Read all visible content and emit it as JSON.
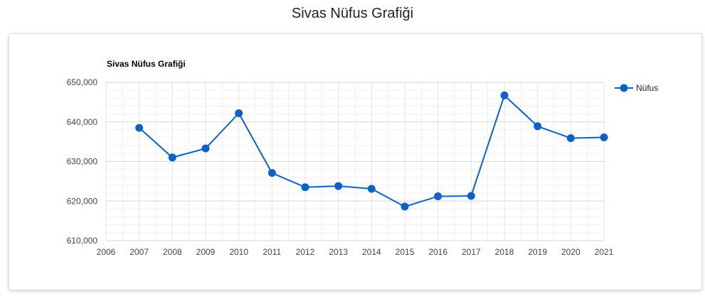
{
  "page": {
    "title": "Sivas Nüfus Grafiği"
  },
  "chart_data": {
    "type": "line",
    "title": "Sivas Nüfus Grafiği",
    "xlabel": "",
    "ylabel": "",
    "x_ticks": [
      "2006",
      "2007",
      "2008",
      "2009",
      "2010",
      "2011",
      "2012",
      "2013",
      "2014",
      "2015",
      "2016",
      "2017",
      "2018",
      "2019",
      "2020",
      "2021"
    ],
    "y_ticks": [
      "610,000",
      "620,000",
      "630,000",
      "640,000",
      "650,000"
    ],
    "xlim": [
      2006,
      2021
    ],
    "ylim": [
      610000,
      650000
    ],
    "grid": true,
    "legend_position": "right",
    "series": [
      {
        "name": "Nüfus",
        "color": "#0a62c7",
        "x": [
          2007,
          2008,
          2009,
          2010,
          2011,
          2012,
          2013,
          2014,
          2015,
          2016,
          2017,
          2018,
          2019,
          2020,
          2021
        ],
        "values": [
          638500,
          631000,
          633300,
          642200,
          627100,
          623500,
          623800,
          623100,
          618600,
          621200,
          621300,
          646700,
          638900,
          635900,
          636100
        ]
      }
    ]
  }
}
